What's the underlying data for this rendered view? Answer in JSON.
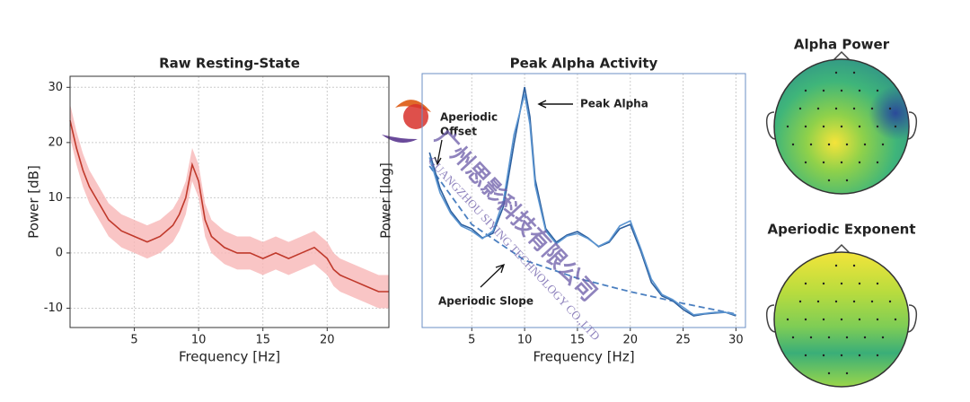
{
  "chart_data": [
    {
      "type": "line",
      "title": "Raw Resting-State",
      "xlabel": "Frequency [Hz]",
      "ylabel": "Power [dB]",
      "x": [
        0,
        0.5,
        1,
        1.5,
        2,
        3,
        4,
        5,
        6,
        7,
        8,
        8.5,
        9,
        9.5,
        10,
        10.5,
        11,
        12,
        13,
        14,
        15,
        16,
        17,
        18,
        19,
        20,
        20.5,
        21,
        22,
        23,
        24,
        24.8
      ],
      "series": [
        {
          "color": "#c0392b",
          "values": [
            24,
            19,
            15,
            12,
            10,
            6,
            4,
            3,
            2,
            3,
            5,
            7,
            10,
            16,
            13,
            6,
            3,
            1,
            0,
            0,
            -1,
            0,
            -1,
            0,
            1,
            -1,
            -3,
            -4,
            -5,
            -6,
            -7,
            -7
          ]
        }
      ],
      "band": {
        "color": "#f7b6b6",
        "lower": [
          21,
          16,
          12,
          9,
          7,
          3,
          1,
          0,
          -1,
          0,
          2,
          4,
          7,
          13,
          10,
          3,
          0,
          -2,
          -3,
          -3,
          -4,
          -3,
          -4,
          -3,
          -2,
          -4,
          -6,
          -7,
          -8,
          -9,
          -10,
          -10
        ],
        "upper": [
          27,
          22,
          18,
          15,
          13,
          9,
          7,
          6,
          5,
          6,
          8,
          10,
          13,
          19,
          16,
          9,
          6,
          4,
          3,
          3,
          2,
          3,
          2,
          3,
          4,
          2,
          0,
          -1,
          -2,
          -3,
          -4,
          -4
        ]
      },
      "xlim": [
        0,
        24.8
      ],
      "ylim": [
        -13.5,
        32
      ],
      "xticks": [
        5,
        10,
        15,
        20
      ],
      "yticks": [
        -10,
        0,
        10,
        20,
        30
      ],
      "grid": true
    },
    {
      "type": "line",
      "title": "Peak Alpha Activity",
      "xlabel": "Frequency [Hz]",
      "ylabel": "Power [log]",
      "x": [
        1,
        2,
        3,
        4,
        5,
        6,
        7,
        8,
        9,
        10,
        10.5,
        11,
        12,
        13,
        14,
        15,
        16,
        17,
        18,
        19,
        20,
        21,
        22,
        23,
        24,
        25,
        26,
        27,
        28,
        29,
        30
      ],
      "series": [
        {
          "color": "#2c5f9e",
          "values": [
            6.89,
            5.48,
            4.59,
            4.06,
            3.89,
            3.53,
            3.71,
            4.77,
            7.24,
            9.47,
            8.3,
            5.83,
            3.89,
            3.36,
            3.64,
            3.78,
            3.53,
            3.18,
            3.36,
            3.89,
            4.06,
            3.0,
            1.77,
            1.24,
            1.06,
            0.71,
            0.46,
            0.53,
            0.57,
            0.6,
            0.46
          ]
        },
        {
          "color": "#5b95d1",
          "values": [
            6.7,
            5.3,
            4.5,
            4.0,
            3.8,
            3.5,
            3.8,
            5.0,
            7.6,
            9.2,
            8.0,
            5.6,
            3.8,
            3.3,
            3.6,
            3.7,
            3.5,
            3.2,
            3.4,
            4.0,
            4.2,
            3.1,
            1.9,
            1.3,
            1.1,
            0.8,
            0.5,
            0.55,
            0.6,
            0.6,
            0.5
          ]
        }
      ],
      "aperiodic": {
        "color": "#4a7fc0",
        "x": [
          1,
          5,
          10,
          15,
          20,
          25,
          30
        ],
        "values": [
          6.36,
          4.06,
          2.65,
          1.94,
          1.41,
          0.95,
          0.53
        ]
      },
      "annotations": {
        "peak": "Peak Alpha",
        "offset": [
          "Aperiodic",
          "Offset"
        ],
        "slope": "Aperiodic Slope"
      },
      "xlim": [
        0.3,
        30.9
      ],
      "ylim": [
        0,
        10
      ],
      "xticks": [
        5,
        10,
        15,
        20,
        25,
        30
      ],
      "grid": true
    }
  ],
  "topomaps": [
    {
      "title": "Alpha Power"
    },
    {
      "title": "Aperiodic Exponent"
    }
  ],
  "watermark": {
    "name": "广州思影科技有限公司",
    "name_en": "GUANGZHOU SIYING TECHNOLOGY CO.,LTD"
  }
}
